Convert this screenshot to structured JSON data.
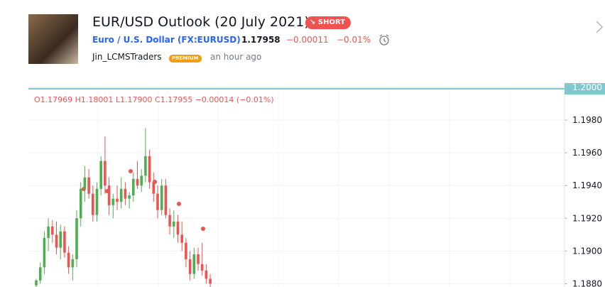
{
  "header": {
    "title": "EUR/USD Outlook (20 July 2021)",
    "badge": "SHORT",
    "symbol": "Euro / U.S. Dollar (FX:EURUSD)",
    "price": "1.17958",
    "change": "−0.00011",
    "change_pct": "−0.01%",
    "author": "Jin_LCMSTraders",
    "author_badge": "PREMIUM",
    "time": "an hour ago"
  },
  "chart_data": {
    "type": "candlestick",
    "legend": {
      "open": "O1.17969",
      "high": "H1.18001",
      "low": "L1.17900",
      "close": "C1.17955",
      "change": "−0.00014 (−0.01%)"
    },
    "ohlc": [
      [
        1.1879,
        1.1883,
        1.1878,
        1.1882
      ],
      [
        1.1882,
        1.1893,
        1.188,
        1.189
      ],
      [
        1.189,
        1.1912,
        1.1886,
        1.1908
      ],
      [
        1.1908,
        1.192,
        1.19,
        1.1915
      ],
      [
        1.1915,
        1.1919,
        1.1905,
        1.191
      ],
      [
        1.191,
        1.1918,
        1.1898,
        1.1902
      ],
      [
        1.1902,
        1.1916,
        1.1895,
        1.1912
      ],
      [
        1.1912,
        1.1915,
        1.1896,
        1.1899
      ],
      [
        1.1899,
        1.1903,
        1.1886,
        1.189
      ],
      [
        1.189,
        1.1898,
        1.1882,
        1.1895
      ],
      [
        1.1895,
        1.1925,
        1.189,
        1.192
      ],
      [
        1.192,
        1.1942,
        1.1915,
        1.1938
      ],
      [
        1.1938,
        1.1952,
        1.193,
        1.1945
      ],
      [
        1.1945,
        1.195,
        1.1932,
        1.1935
      ],
      [
        1.1935,
        1.194,
        1.1918,
        1.1922
      ],
      [
        1.1922,
        1.1942,
        1.1918,
        1.1938
      ],
      [
        1.1938,
        1.1958,
        1.1934,
        1.1955
      ],
      [
        1.1955,
        1.197,
        1.1935,
        1.194
      ],
      [
        1.194,
        1.1945,
        1.1922,
        1.1928
      ],
      [
        1.1928,
        1.1935,
        1.192,
        1.1932
      ],
      [
        1.1932,
        1.194,
        1.1925,
        1.193
      ],
      [
        1.193,
        1.1945,
        1.1926,
        1.1938
      ],
      [
        1.1938,
        1.1942,
        1.1928,
        1.1932
      ],
      [
        1.1932,
        1.1936,
        1.1926,
        1.1934
      ],
      [
        1.1934,
        1.1948,
        1.193,
        1.1944
      ],
      [
        1.1944,
        1.1955,
        1.1938,
        1.194
      ],
      [
        1.194,
        1.195,
        1.1936,
        1.1946
      ],
      [
        1.1946,
        1.1975,
        1.1942,
        1.1958
      ],
      [
        1.1958,
        1.1962,
        1.1938,
        1.1942
      ],
      [
        1.1942,
        1.1948,
        1.193,
        1.1935
      ],
      [
        1.1935,
        1.194,
        1.192,
        1.1925
      ],
      [
        1.1925,
        1.1944,
        1.1922,
        1.194
      ],
      [
        1.194,
        1.1944,
        1.192,
        1.1922
      ],
      [
        1.1922,
        1.1926,
        1.191,
        1.1915
      ],
      [
        1.1915,
        1.1925,
        1.1908,
        1.1918
      ],
      [
        1.1918,
        1.1922,
        1.1905,
        1.191
      ],
      [
        1.191,
        1.1918,
        1.19,
        1.1905
      ],
      [
        1.1905,
        1.1908,
        1.189,
        1.1895
      ],
      [
        1.1895,
        1.19,
        1.1882,
        1.1886
      ],
      [
        1.1886,
        1.1902,
        1.1883,
        1.1898
      ],
      [
        1.1898,
        1.1902,
        1.1888,
        1.1892
      ],
      [
        1.1892,
        1.1905,
        1.1885,
        1.1888
      ],
      [
        1.1888,
        1.1892,
        1.188,
        1.1883
      ],
      [
        1.1883,
        1.1886,
        1.1878,
        1.188
      ]
    ],
    "up_color": "#4caf50",
    "down_color": "#ef5350",
    "ylim": [
      1.1878,
      1.2
    ],
    "yticks": [
      {
        "value": 1.2,
        "label": "1.2000"
      },
      {
        "value": 1.198,
        "label": "1.1980"
      },
      {
        "value": 1.196,
        "label": "1.1960"
      },
      {
        "value": 1.194,
        "label": "1.1940"
      },
      {
        "value": 1.192,
        "label": "1.1920"
      },
      {
        "value": 1.19,
        "label": "1.1900"
      },
      {
        "value": 1.188,
        "label": "1.1880"
      }
    ],
    "grid": true
  }
}
